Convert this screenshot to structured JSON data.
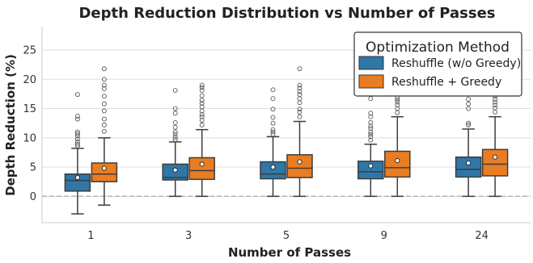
{
  "chart_data": {
    "type": "box",
    "title": "Depth Reduction Distribution vs Number of Passes",
    "xlabel": "Number of Passes",
    "ylabel": "Depth Reduction (%)",
    "categories": [
      "1",
      "3",
      "5",
      "9",
      "24"
    ],
    "ylim": [
      -4.5,
      29
    ],
    "yticks": [
      0,
      5,
      10,
      15,
      20,
      25
    ],
    "grid": "horizontal",
    "zero_line": 0,
    "legend": {
      "title": "Optimization Method",
      "position": "top-right"
    },
    "series": [
      {
        "name": "Reshuffle (w/o Greedy)",
        "color": "#2e77a7",
        "boxes": [
          {
            "whislo": -3.0,
            "q1": 0.9,
            "med": 2.7,
            "q3": 3.8,
            "whishi": 8.2,
            "mean": 3.2,
            "fliers": [
              8.6,
              8.9,
              9.3,
              9.8,
              10.3,
              10.7,
              11.0,
              13.2,
              13.7,
              17.4
            ]
          },
          {
            "whislo": 0.0,
            "q1": 2.8,
            "med": 3.2,
            "q3": 5.5,
            "whishi": 9.3,
            "mean": 4.5,
            "fliers": [
              9.7,
              10.1,
              10.6,
              11.0,
              11.8,
              12.6,
              14.2,
              15.0,
              18.1
            ]
          },
          {
            "whislo": 0.0,
            "q1": 3.0,
            "med": 3.8,
            "q3": 5.9,
            "whishi": 10.2,
            "mean": 5.0,
            "fliers": [
              10.6,
              11.0,
              11.4,
              12.5,
              13.5,
              14.9,
              16.7,
              18.2
            ]
          },
          {
            "whislo": 0.0,
            "q1": 3.0,
            "med": 4.2,
            "q3": 6.0,
            "whishi": 8.9,
            "mean": 5.2,
            "fliers": [
              9.6,
              10.2,
              10.6,
              11.0,
              11.6,
              12.0,
              12.6,
              13.6,
              14.2,
              16.7
            ]
          },
          {
            "whislo": 0.0,
            "q1": 3.3,
            "med": 4.6,
            "q3": 6.7,
            "whishi": 11.5,
            "mean": 5.7,
            "fliers": [
              12.2,
              12.5,
              15.0,
              15.8,
              16.6,
              17.8
            ]
          }
        ]
      },
      {
        "name": "Reshuffle + Greedy",
        "color": "#e97d22",
        "boxes": [
          {
            "whislo": -1.5,
            "q1": 2.5,
            "med": 3.8,
            "q3": 5.7,
            "whishi": 10.0,
            "mean": 4.8,
            "fliers": [
              11.1,
              12.2,
              13.2,
              14.6,
              15.8,
              17.1,
              18.4,
              19.0,
              20.0,
              21.8
            ]
          },
          {
            "whislo": 0.0,
            "q1": 2.9,
            "med": 4.4,
            "q3": 6.6,
            "whishi": 11.4,
            "mean": 5.5,
            "fliers": [
              12.2,
              13.0,
              13.6,
              14.0,
              14.6,
              15.3,
              15.9,
              16.4,
              17.2,
              18.1,
              18.6,
              19.0
            ]
          },
          {
            "whislo": 0.0,
            "q1": 3.2,
            "med": 4.8,
            "q3": 7.1,
            "whishi": 12.8,
            "mean": 5.9,
            "fliers": [
              13.6,
              14.4,
              14.9,
              16.0,
              16.7,
              17.4,
              17.9,
              18.5,
              19.0,
              21.8
            ]
          },
          {
            "whislo": 0.0,
            "q1": 3.3,
            "med": 4.9,
            "q3": 7.7,
            "whishi": 13.6,
            "mean": 6.1,
            "fliers": [
              14.3,
              15.0,
              15.6,
              16.1,
              16.5,
              16.9
            ]
          },
          {
            "whislo": 0.0,
            "q1": 3.5,
            "med": 5.5,
            "q3": 8.0,
            "whishi": 13.6,
            "mean": 6.7,
            "fliers": [
              14.4,
              15.1,
              15.6,
              16.1,
              16.6,
              17.1
            ]
          }
        ]
      }
    ]
  }
}
